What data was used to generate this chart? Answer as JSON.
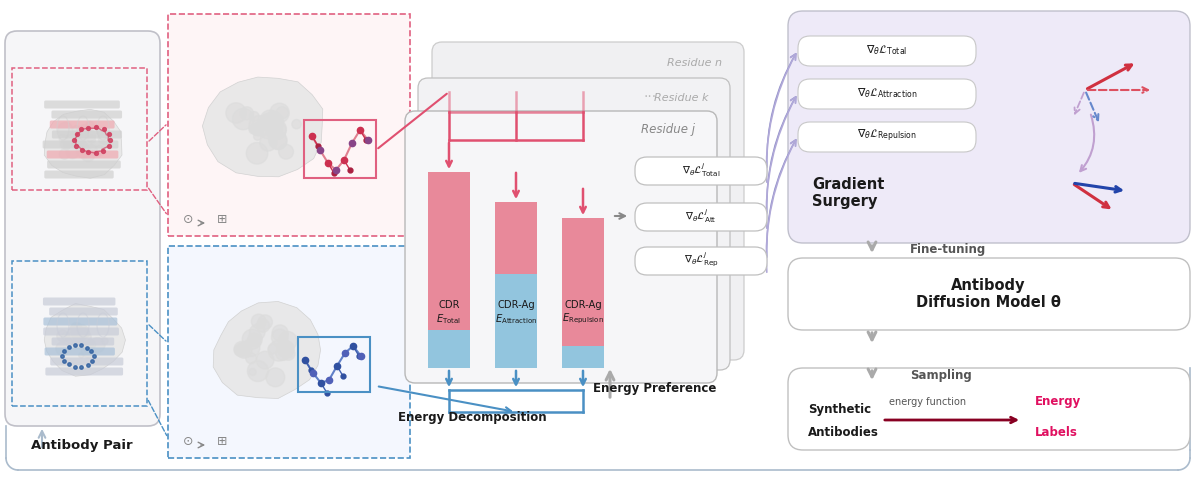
{
  "figsize": [
    12.0,
    4.78
  ],
  "dpi": 100,
  "bg_color": "#ffffff",
  "antibody_pair_label": "Antibody Pair",
  "energy_decomp_label": "Energy Decomposition",
  "energy_pref_label": "Energy Preference",
  "gradient_surgery_label": "Gradient\nSurgery",
  "fine_tuning_label": "Fine-tuning",
  "sampling_label": "Sampling",
  "antibody_diffusion_line1": "Antibody",
  "antibody_diffusion_line2": "Diffusion Model ",
  "theta_label": "θ",
  "residue_n_label": "Residue n",
  "residue_k_label": "Residue k",
  "residue_j_label": "Residue j",
  "dots_label": "...",
  "grad_labels": [
    "$\\nabla_{\\theta}\\mathcal{L}_{\\mathrm{Total}}$",
    "$\\nabla_{\\theta}\\mathcal{L}_{\\mathrm{Attraction}}$",
    "$\\nabla_{\\theta}\\mathcal{L}_{\\mathrm{Repulsion}}$"
  ],
  "grad_j_labels": [
    "$\\nabla_{\\theta}\\mathcal{L}^j_{\\mathrm{Total}}$",
    "$\\nabla_{\\theta}\\mathcal{L}^j_{\\mathrm{Att}}$",
    "$\\nabla_{\\theta}\\mathcal{L}^j_{\\mathrm{Rep}}$"
  ],
  "synthetic_label1": "Synthetic",
  "synthetic_label2": "Antibodies",
  "energy_func_label": "energy function",
  "energy_labels_label1": "Energy",
  "energy_labels_label2": "Labels",
  "pink": "#E8899A",
  "blue": "#92C5DE",
  "pink_arrow": "#E05070",
  "blue_arrow": "#4A90C4",
  "purple_light": "#B0A8D8",
  "red_arrow": "#D03040",
  "blue_dark": "#2050A0",
  "gray_line": "#AAAAAA",
  "text_dark": "#1A1A1A",
  "pink_color": "#E06080",
  "blue_color": "#4A90C4",
  "box_bg_grad": "#EEEbF8"
}
